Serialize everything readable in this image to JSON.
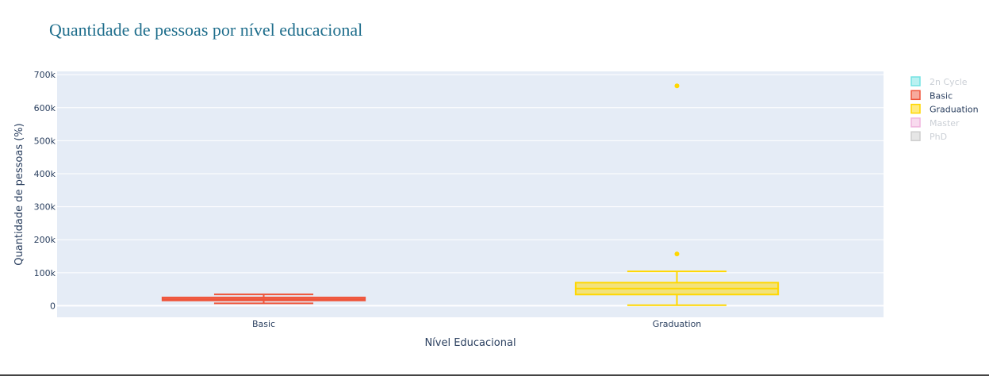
{
  "chart_data": {
    "type": "box",
    "title": "Quantidade de pessoas por nível educacional",
    "xlabel": "Nível Educacional",
    "ylabel": "Quantidade de pessoas (%)",
    "ylim": [
      -35000,
      710000
    ],
    "yticks": [
      0,
      100000,
      200000,
      300000,
      400000,
      500000,
      600000,
      700000
    ],
    "ytick_labels": [
      "0",
      "100k",
      "200k",
      "300k",
      "400k",
      "500k",
      "600k",
      "700k"
    ],
    "categories": [
      "Basic",
      "Graduation"
    ],
    "grid": true,
    "legend_position": "top-right",
    "series": [
      {
        "name": "2n Cycle",
        "color": "#00cccc",
        "visible": false,
        "box": null
      },
      {
        "name": "Basic",
        "color": "#ef553b",
        "visible": true,
        "box": {
          "category": "Basic",
          "lowerfence": 7500,
          "q1": 16000,
          "median": 20000,
          "q3": 25000,
          "upperfence": 34500,
          "outliers": []
        }
      },
      {
        "name": "Graduation",
        "color": "#ffd700",
        "visible": true,
        "box": {
          "category": "Graduation",
          "lowerfence": 1700,
          "q1": 34000,
          "median": 52000,
          "q3": 70000,
          "upperfence": 104000,
          "outliers": [
            157000,
            666000
          ]
        }
      },
      {
        "name": "Master",
        "color": "#e377c2",
        "visible": false,
        "box": null
      },
      {
        "name": "PhD",
        "color": "#a5a5a5",
        "visible": false,
        "box": null
      }
    ]
  }
}
